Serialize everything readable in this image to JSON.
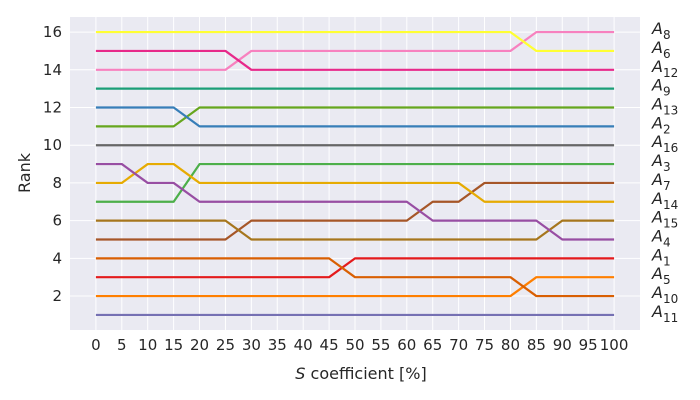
{
  "chart_data": {
    "type": "line",
    "title": "",
    "xlabel_italic": "S",
    "xlabel_rest": " coefficient [%]",
    "ylabel": "Rank",
    "x": [
      0,
      5,
      10,
      15,
      20,
      25,
      30,
      35,
      40,
      45,
      50,
      55,
      60,
      65,
      70,
      75,
      80,
      85,
      90,
      95,
      100
    ],
    "xticks": [
      "0",
      "5",
      "10",
      "15",
      "20",
      "25",
      "30",
      "35",
      "40",
      "45",
      "50",
      "55",
      "60",
      "65",
      "70",
      "75",
      "80",
      "85",
      "90",
      "95",
      "100"
    ],
    "yticks": [
      2,
      4,
      6,
      8,
      10,
      12,
      14,
      16
    ],
    "xlim": [
      -5,
      105
    ],
    "ylim": [
      0.2,
      16.8
    ],
    "grid": true,
    "background": "#eaeaf2",
    "series": [
      {
        "name": "A",
        "sub": "8",
        "color": "#ffff33",
        "values": [
          16,
          16,
          16,
          16,
          16,
          16,
          16,
          16,
          16,
          16,
          16,
          16,
          16,
          16,
          16,
          16,
          16,
          15,
          15,
          15,
          15
        ]
      },
      {
        "name": "A",
        "sub": "6",
        "color": "#e7298a",
        "values": [
          15,
          15,
          15,
          15,
          15,
          15,
          14,
          14,
          14,
          14,
          14,
          14,
          14,
          14,
          14,
          14,
          14,
          14,
          14,
          14,
          14
        ]
      },
      {
        "name": "A",
        "sub": "12",
        "color": "#f781bf",
        "values": [
          14,
          14,
          14,
          14,
          14,
          14,
          15,
          15,
          15,
          15,
          15,
          15,
          15,
          15,
          15,
          15,
          15,
          16,
          16,
          16,
          16
        ]
      },
      {
        "name": "A",
        "sub": "9",
        "color": "#1b9e77",
        "values": [
          13,
          13,
          13,
          13,
          13,
          13,
          13,
          13,
          13,
          13,
          13,
          13,
          13,
          13,
          13,
          13,
          13,
          13,
          13,
          13,
          13
        ]
      },
      {
        "name": "A",
        "sub": "13",
        "color": "#377eb8",
        "values": [
          12,
          12,
          12,
          12,
          11,
          11,
          11,
          11,
          11,
          11,
          11,
          11,
          11,
          11,
          11,
          11,
          11,
          11,
          11,
          11,
          11
        ]
      },
      {
        "name": "A",
        "sub": "2",
        "color": "#66a61e",
        "values": [
          11,
          11,
          11,
          11,
          12,
          12,
          12,
          12,
          12,
          12,
          12,
          12,
          12,
          12,
          12,
          12,
          12,
          12,
          12,
          12,
          12
        ]
      },
      {
        "name": "A",
        "sub": "16",
        "color": "#666666",
        "values": [
          10,
          10,
          10,
          10,
          10,
          10,
          10,
          10,
          10,
          10,
          10,
          10,
          10,
          10,
          10,
          10,
          10,
          10,
          10,
          10,
          10
        ]
      },
      {
        "name": "A",
        "sub": "3",
        "color": "#984ea3",
        "values": [
          9,
          9,
          8,
          8,
          7,
          7,
          7,
          7,
          7,
          7,
          7,
          7,
          7,
          6,
          6,
          6,
          6,
          6,
          5,
          5,
          5
        ]
      },
      {
        "name": "A",
        "sub": "7",
        "color": "#e6ab02",
        "values": [
          8,
          8,
          9,
          9,
          8,
          8,
          8,
          8,
          8,
          8,
          8,
          8,
          8,
          8,
          8,
          7,
          7,
          7,
          7,
          7,
          7
        ]
      },
      {
        "name": "A",
        "sub": "14",
        "color": "#4daf4a",
        "values": [
          7,
          7,
          7,
          7,
          9,
          9,
          9,
          9,
          9,
          9,
          9,
          9,
          9,
          9,
          9,
          9,
          9,
          9,
          9,
          9,
          9
        ]
      },
      {
        "name": "A",
        "sub": "15",
        "color": "#a6761d",
        "values": [
          6,
          6,
          6,
          6,
          6,
          6,
          5,
          5,
          5,
          5,
          5,
          5,
          5,
          5,
          5,
          5,
          5,
          5,
          6,
          6,
          6
        ]
      },
      {
        "name": "A",
        "sub": "4",
        "color": "#a65628",
        "values": [
          5,
          5,
          5,
          5,
          5,
          5,
          6,
          6,
          6,
          6,
          6,
          6,
          6,
          7,
          7,
          8,
          8,
          8,
          8,
          8,
          8
        ]
      },
      {
        "name": "A",
        "sub": "1",
        "color": "#d95f02",
        "values": [
          4,
          4,
          4,
          4,
          4,
          4,
          4,
          4,
          4,
          4,
          3,
          3,
          3,
          3,
          3,
          3,
          3,
          2,
          2,
          2,
          2
        ]
      },
      {
        "name": "A",
        "sub": "5",
        "color": "#e41a1c",
        "values": [
          3,
          3,
          3,
          3,
          3,
          3,
          3,
          3,
          3,
          3,
          4,
          4,
          4,
          4,
          4,
          4,
          4,
          4,
          4,
          4,
          4
        ]
      },
      {
        "name": "A",
        "sub": "10",
        "color": "#ff7f00",
        "values": [
          2,
          2,
          2,
          2,
          2,
          2,
          2,
          2,
          2,
          2,
          2,
          2,
          2,
          2,
          2,
          2,
          2,
          3,
          3,
          3,
          3
        ]
      },
      {
        "name": "A",
        "sub": "11",
        "color": "#7570b3",
        "values": [
          1,
          1,
          1,
          1,
          1,
          1,
          1,
          1,
          1,
          1,
          1,
          1,
          1,
          1,
          1,
          1,
          1,
          1,
          1,
          1,
          1
        ]
      }
    ],
    "labels_right": [
      {
        "name": "A",
        "sub": "8"
      },
      {
        "name": "A",
        "sub": "6"
      },
      {
        "name": "A",
        "sub": "12"
      },
      {
        "name": "A",
        "sub": "9"
      },
      {
        "name": "A",
        "sub": "13"
      },
      {
        "name": "A",
        "sub": "2"
      },
      {
        "name": "A",
        "sub": "16"
      },
      {
        "name": "A",
        "sub": "3"
      },
      {
        "name": "A",
        "sub": "7"
      },
      {
        "name": "A",
        "sub": "14"
      },
      {
        "name": "A",
        "sub": "15"
      },
      {
        "name": "A",
        "sub": "4"
      },
      {
        "name": "A",
        "sub": "1"
      },
      {
        "name": "A",
        "sub": "5"
      },
      {
        "name": "A",
        "sub": "10"
      },
      {
        "name": "A",
        "sub": "11"
      }
    ]
  }
}
